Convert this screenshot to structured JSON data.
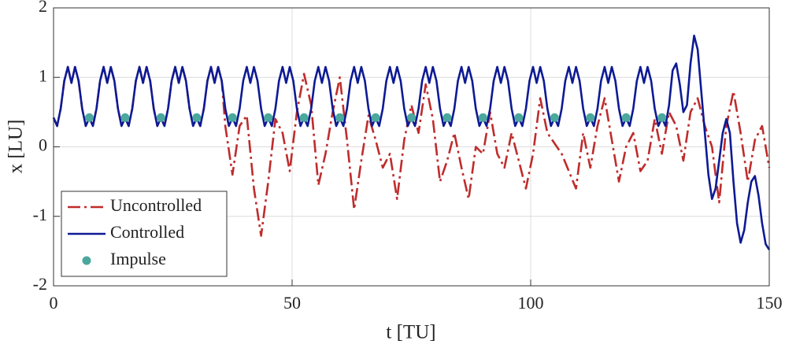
{
  "chart_data": {
    "type": "line",
    "xlabel": "t [TU]",
    "ylabel": "x [LU]",
    "xlim": [
      0,
      150
    ],
    "ylim": [
      -2,
      2
    ],
    "xticks": [
      0,
      50,
      100,
      150
    ],
    "yticks": [
      -2,
      -1,
      0,
      1,
      2
    ],
    "grid": true,
    "legend": "lower left",
    "series": [
      {
        "name": "Uncontrolled",
        "color": "#bf2c2c",
        "linestyle": "dashdot",
        "x": [
          0,
          0.75,
          1.5,
          2.25,
          3,
          3.75,
          4.5,
          5.25,
          6,
          6.75,
          7.5,
          8.25,
          9,
          9.75,
          10.5,
          11.25,
          12,
          12.75,
          13.5,
          14.25,
          15,
          15.75,
          16.5,
          17.25,
          18,
          18.75,
          19.5,
          20.25,
          21,
          21.75,
          22.5,
          23.25,
          24,
          24.75,
          25.5,
          26.25,
          27,
          27.75,
          28.5,
          29.25,
          30,
          30.75,
          31.5,
          32.25,
          33,
          33.75,
          34.5,
          35.25,
          36,
          37.5,
          39,
          40.5,
          42,
          43.5,
          45,
          46.5,
          48,
          49.5,
          51,
          52.5,
          54,
          55.5,
          57,
          58.5,
          60,
          61.5,
          63,
          64.5,
          66,
          67.5,
          69,
          70.5,
          72,
          73.5,
          75,
          76.5,
          78,
          79.5,
          81,
          82.5,
          84,
          85.5,
          87,
          88.5,
          90,
          91.5,
          93,
          94.5,
          96,
          97.5,
          99,
          100.5,
          102,
          103.5,
          105,
          106.5,
          108,
          109.5,
          111,
          112.5,
          114,
          115.5,
          117,
          118.5,
          120,
          121.5,
          123,
          124.5,
          126,
          127.5,
          129,
          130.5,
          132,
          133.5,
          135,
          136.5,
          138,
          139.5,
          141,
          142.5,
          144,
          145.5,
          147,
          148.5,
          150
        ],
        "values": [
          0.42,
          0.3,
          0.55,
          0.95,
          1.15,
          0.92,
          1.15,
          0.95,
          0.55,
          0.3,
          0.42,
          0.3,
          0.55,
          0.95,
          1.15,
          0.92,
          1.15,
          0.95,
          0.55,
          0.3,
          0.42,
          0.3,
          0.55,
          0.95,
          1.15,
          0.92,
          1.15,
          0.95,
          0.55,
          0.3,
          0.42,
          0.3,
          0.55,
          0.95,
          1.15,
          0.92,
          1.15,
          0.95,
          0.55,
          0.3,
          0.42,
          0.3,
          0.55,
          0.95,
          1.15,
          0.92,
          1.15,
          0.95,
          0.3,
          -0.4,
          0.3,
          0.45,
          -0.6,
          -1.28,
          -0.5,
          0.4,
          0.2,
          -0.35,
          0.5,
          1.05,
          0.6,
          -0.55,
          -0.1,
          0.5,
          1.0,
          0.1,
          -0.9,
          -0.2,
          0.45,
          0.1,
          -0.3,
          -0.1,
          -0.75,
          0.1,
          0.6,
          0.2,
          0.9,
          0.4,
          -0.5,
          -0.2,
          0.2,
          -0.3,
          -0.75,
          0.0,
          -0.1,
          0.5,
          -0.1,
          -0.3,
          0.2,
          -0.2,
          -0.6,
          -0.1,
          0.7,
          0.2,
          0.05,
          -0.1,
          -0.35,
          -0.6,
          0.2,
          -0.3,
          0.3,
          0.7,
          0.1,
          -0.5,
          0.0,
          0.2,
          -0.35,
          -0.2,
          0.4,
          -0.1,
          0.5,
          0.3,
          -0.2,
          0.5,
          0.7,
          0.3,
          0.0,
          -0.8,
          0.3,
          0.8,
          0.2,
          -0.5,
          0.1,
          0.3,
          -0.3
        ]
      },
      {
        "name": "Controlled",
        "color": "#0d1a94",
        "linestyle": "solid",
        "x": [
          0,
          0.75,
          1.5,
          2.25,
          3,
          3.75,
          4.5,
          5.25,
          6,
          6.75,
          7.5,
          8.25,
          9,
          9.75,
          10.5,
          11.25,
          12,
          12.75,
          13.5,
          14.25,
          15,
          15.75,
          16.5,
          17.25,
          18,
          18.75,
          19.5,
          20.25,
          21,
          21.75,
          22.5,
          23.25,
          24,
          24.75,
          25.5,
          26.25,
          27,
          27.75,
          28.5,
          29.25,
          30,
          30.75,
          31.5,
          32.25,
          33,
          33.75,
          34.5,
          35.25,
          36,
          36.75,
          37.5,
          38.25,
          39,
          39.75,
          40.5,
          41.25,
          42,
          42.75,
          43.5,
          44.25,
          45,
          45.75,
          46.5,
          47.25,
          48,
          48.75,
          49.5,
          50.25,
          51,
          51.75,
          52.5,
          53.25,
          54,
          54.75,
          55.5,
          56.25,
          57,
          57.75,
          58.5,
          59.25,
          60,
          60.75,
          61.5,
          62.25,
          63,
          63.75,
          64.5,
          65.25,
          66,
          66.75,
          67.5,
          68.25,
          69,
          69.75,
          70.5,
          71.25,
          72,
          72.75,
          73.5,
          74.25,
          75,
          75.75,
          76.5,
          77.25,
          78,
          78.75,
          79.5,
          80.25,
          81,
          81.75,
          82.5,
          83.25,
          84,
          84.75,
          85.5,
          86.25,
          87,
          87.75,
          88.5,
          89.25,
          90,
          90.75,
          91.5,
          92.25,
          93,
          93.75,
          94.5,
          95.25,
          96,
          96.75,
          97.5,
          98.25,
          99,
          99.75,
          100.5,
          101.25,
          102,
          102.75,
          103.5,
          104.25,
          105,
          105.75,
          106.5,
          107.25,
          108,
          108.75,
          109.5,
          110.25,
          111,
          111.75,
          112.5,
          113.25,
          114,
          114.75,
          115.5,
          116.25,
          117,
          117.75,
          118.5,
          119.25,
          120,
          120.75,
          121.5,
          122.25,
          123,
          123.75,
          124.5,
          125.25,
          126,
          126.75,
          127.5,
          128.25,
          129,
          129.75,
          130.5,
          131.25,
          132,
          132.75,
          133.5,
          134.25,
          135,
          135.75,
          136.5,
          137.25,
          138,
          138.75,
          139.5,
          140.25,
          141,
          141.75,
          142.5,
          143.25,
          144,
          144.75,
          145.5,
          146.25,
          147,
          147.75,
          148.5,
          149.25,
          150
        ],
        "values": [
          0.42,
          0.3,
          0.55,
          0.95,
          1.15,
          0.92,
          1.15,
          0.95,
          0.55,
          0.3,
          0.42,
          0.3,
          0.55,
          0.95,
          1.15,
          0.92,
          1.15,
          0.95,
          0.55,
          0.3,
          0.42,
          0.3,
          0.55,
          0.95,
          1.15,
          0.92,
          1.15,
          0.95,
          0.55,
          0.3,
          0.42,
          0.3,
          0.55,
          0.95,
          1.15,
          0.92,
          1.15,
          0.95,
          0.55,
          0.3,
          0.42,
          0.3,
          0.55,
          0.95,
          1.15,
          0.92,
          1.15,
          0.95,
          0.55,
          0.3,
          0.42,
          0.3,
          0.55,
          0.95,
          1.15,
          0.92,
          1.15,
          0.95,
          0.55,
          0.3,
          0.42,
          0.3,
          0.55,
          0.95,
          1.15,
          0.92,
          1.15,
          0.95,
          0.55,
          0.3,
          0.42,
          0.3,
          0.55,
          0.95,
          1.15,
          0.92,
          1.15,
          0.95,
          0.55,
          0.3,
          0.42,
          0.3,
          0.55,
          0.95,
          1.15,
          0.92,
          1.15,
          0.95,
          0.55,
          0.3,
          0.42,
          0.3,
          0.55,
          0.95,
          1.15,
          0.92,
          1.15,
          0.95,
          0.55,
          0.3,
          0.42,
          0.3,
          0.55,
          0.95,
          1.15,
          0.92,
          1.15,
          0.95,
          0.55,
          0.3,
          0.42,
          0.3,
          0.55,
          0.95,
          1.15,
          0.92,
          1.15,
          0.95,
          0.55,
          0.3,
          0.42,
          0.3,
          0.55,
          0.95,
          1.15,
          0.92,
          1.15,
          0.95,
          0.55,
          0.3,
          0.42,
          0.3,
          0.55,
          0.95,
          1.15,
          0.92,
          1.15,
          0.95,
          0.55,
          0.3,
          0.42,
          0.3,
          0.55,
          0.95,
          1.15,
          0.92,
          1.15,
          0.95,
          0.55,
          0.3,
          0.42,
          0.3,
          0.55,
          0.95,
          1.15,
          0.92,
          1.15,
          0.95,
          0.55,
          0.3,
          0.42,
          0.3,
          0.55,
          0.95,
          1.15,
          0.92,
          1.15,
          0.95,
          0.55,
          0.3,
          0.42,
          0.3,
          0.6,
          1.1,
          1.2,
          0.9,
          0.5,
          0.6,
          1.2,
          1.6,
          1.4,
          0.8,
          0.2,
          -0.4,
          -0.75,
          -0.6,
          -0.2,
          0.2,
          0.4,
          0.2,
          -0.5,
          -1.1,
          -1.38,
          -1.2,
          -0.8,
          -0.5,
          -0.42,
          -0.7,
          -1.1,
          -1.4,
          -1.48
        ]
      },
      {
        "name": "Impulse",
        "type": "scatter",
        "color": "#4aa89c",
        "x": [
          7.5,
          15,
          22.5,
          30,
          37.5,
          45,
          52.5,
          60,
          67.5,
          75,
          82.5,
          90,
          97.5,
          105,
          112.5,
          120,
          127.5
        ],
        "values": [
          0.42,
          0.42,
          0.42,
          0.42,
          0.42,
          0.42,
          0.42,
          0.42,
          0.42,
          0.42,
          0.42,
          0.42,
          0.42,
          0.42,
          0.42,
          0.42,
          0.42
        ]
      }
    ]
  }
}
